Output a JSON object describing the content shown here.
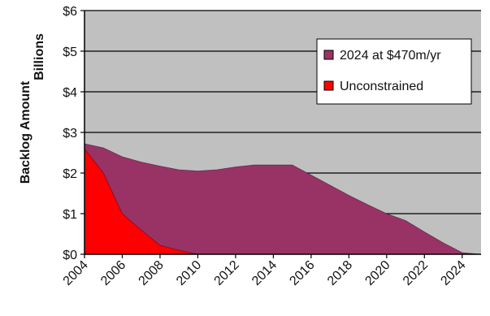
{
  "chart_data": {
    "type": "area",
    "ylabel_lines": [
      "Backlog Amount",
      "Billions"
    ],
    "xlabel": "",
    "x_ticks": [
      "2004",
      "2006",
      "2008",
      "2010",
      "2012",
      "2014",
      "2016",
      "2018",
      "2020",
      "2022",
      "2024"
    ],
    "y_ticks": [
      "$0",
      "$1",
      "$2",
      "$3",
      "$4",
      "$5",
      "$6"
    ],
    "xlim": [
      2004,
      2025
    ],
    "ylim": [
      0,
      6
    ],
    "grid": "horizontal",
    "legend_position": "upper-right",
    "series": [
      {
        "name": "2024 at $470m/yr",
        "color": "#993366",
        "x": [
          2004,
          2005,
          2006,
          2007,
          2008,
          2009,
          2010,
          2011,
          2012,
          2013,
          2014,
          2015,
          2016,
          2017,
          2018,
          2019,
          2020,
          2021,
          2022,
          2023,
          2024,
          2025
        ],
        "values": [
          2.72,
          2.62,
          2.4,
          2.27,
          2.17,
          2.08,
          2.05,
          2.08,
          2.15,
          2.2,
          2.2,
          2.2,
          1.95,
          1.7,
          1.45,
          1.22,
          1.0,
          0.83,
          0.55,
          0.28,
          0.04,
          0.0
        ]
      },
      {
        "name": "Unconstrained",
        "color": "#ff0000",
        "x": [
          2004,
          2005,
          2006,
          2007,
          2008,
          2009,
          2010,
          2011
        ],
        "values": [
          2.6,
          2.0,
          1.0,
          0.6,
          0.22,
          0.1,
          0.0,
          0.0
        ]
      }
    ],
    "colors": {
      "plot_background": "#c0c0c0",
      "gridline": "#000000",
      "legend_background": "#ffffff"
    }
  }
}
